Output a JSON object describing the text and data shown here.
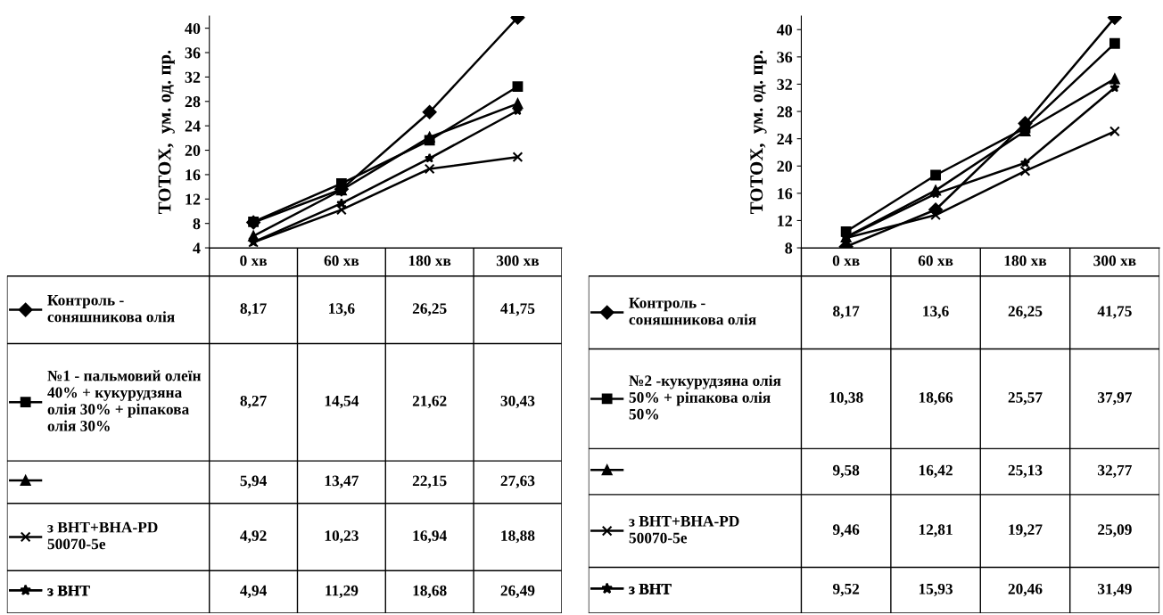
{
  "chart_data": [
    {
      "type": "line",
      "legend": "bottom left",
      "ylabel": "TOTOX,  ум. од. пр.",
      "categories": [
        "0 хв",
        "60 хв",
        "180 хв",
        "300 хв"
      ],
      "ylim": [
        4,
        42
      ],
      "yticks": [
        4,
        8,
        12,
        16,
        20,
        24,
        28,
        32,
        36,
        40
      ],
      "series": [
        {
          "name": "Контроль - соняшникова олія",
          "color": "#000000",
          "marker": "diamond",
          "values": [
            8.17,
            13.6,
            26.25,
            41.75
          ],
          "value_labels": [
            "8,17",
            "13,6",
            "26,25",
            "41,75"
          ]
        },
        {
          "name": "№1 - пальмовий олеїн 40% + кукурудзяна олія 30% + ріпакова олія 30%",
          "color": "#000000",
          "marker": "square",
          "values": [
            8.27,
            14.54,
            21.62,
            30.43
          ],
          "value_labels": [
            "8,27",
            "14,54",
            "21,62",
            "30,43"
          ]
        },
        {
          "name": null,
          "color": "#000000",
          "marker": "triangle",
          "values": [
            5.94,
            13.47,
            22.15,
            27.63
          ],
          "value_labels": [
            "5,94",
            "13,47",
            "22,15",
            "27,63"
          ]
        },
        {
          "name": "з BHT+BHA-PD 50070-5e",
          "color": "#000000",
          "marker": "cross",
          "values": [
            4.92,
            10.23,
            16.94,
            18.88
          ],
          "value_labels": [
            "4,92",
            "10,23",
            "16,94",
            "18,88"
          ]
        },
        {
          "name": "з BHT",
          "color": "#000000",
          "marker": "star",
          "values": [
            4.94,
            11.29,
            18.68,
            26.49
          ],
          "value_labels": [
            "4,94",
            "11,29",
            "18,68",
            "26,49"
          ]
        }
      ]
    },
    {
      "type": "line",
      "legend": "bottom left",
      "ylabel": "TOTOX,  ум. од. пр.",
      "categories": [
        "0 хв",
        "60 хв",
        "180 хв",
        "300 хв"
      ],
      "ylim": [
        8,
        42
      ],
      "yticks": [
        8,
        12,
        16,
        20,
        24,
        28,
        32,
        36,
        40
      ],
      "series": [
        {
          "name": "Контроль - соняшникова олія",
          "color": "#000000",
          "marker": "diamond",
          "values": [
            8.17,
            13.6,
            26.25,
            41.75
          ],
          "value_labels": [
            "8,17",
            "13,6",
            "26,25",
            "41,75"
          ]
        },
        {
          "name": "№2 -кукурудзяна олія 50% + ріпакова олія 50%",
          "color": "#000000",
          "marker": "square",
          "values": [
            10.38,
            18.66,
            25.57,
            37.97
          ],
          "value_labels": [
            "10,38",
            "18,66",
            "25,57",
            "37,97"
          ]
        },
        {
          "name": null,
          "color": "#000000",
          "marker": "triangle",
          "values": [
            9.58,
            16.42,
            25.13,
            32.77
          ],
          "value_labels": [
            "9,58",
            "16,42",
            "25,13",
            "32,77"
          ]
        },
        {
          "name": "з BHT+BHA-PD 50070-5e",
          "color": "#000000",
          "marker": "cross",
          "values": [
            9.46,
            12.81,
            19.27,
            25.09
          ],
          "value_labels": [
            "9,46",
            "12,81",
            "19,27",
            "25,09"
          ]
        },
        {
          "name": "з BHT",
          "color": "#000000",
          "marker": "star",
          "values": [
            9.52,
            15.93,
            20.46,
            31.49
          ],
          "value_labels": [
            "9,52",
            "15,93",
            "20,46",
            "31,49"
          ]
        }
      ]
    }
  ]
}
